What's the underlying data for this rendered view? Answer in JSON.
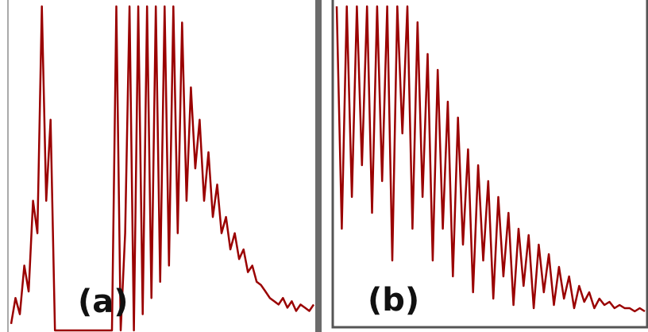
{
  "chart_data": [
    {
      "type": "line",
      "title": "(a)",
      "color": "#9a0000",
      "ylim": [
        0,
        100
      ],
      "values": [
        2,
        10,
        5,
        20,
        12,
        40,
        30,
        100,
        40,
        65,
        0,
        0,
        0,
        0,
        0,
        0,
        0,
        0,
        0,
        0,
        0,
        0,
        0,
        0,
        100,
        0,
        30,
        100,
        0,
        100,
        5,
        100,
        10,
        100,
        15,
        100,
        20,
        100,
        30,
        95,
        40,
        75,
        50,
        65,
        40,
        55,
        35,
        45,
        30,
        35,
        25,
        30,
        22,
        25,
        18,
        20,
        15,
        14,
        12,
        10,
        9,
        8,
        10,
        7,
        9,
        6,
        8,
        7,
        6,
        8
      ]
    },
    {
      "type": "line",
      "title": "(b)",
      "color": "#9a0000",
      "ylim": [
        0,
        100
      ],
      "values": [
        100,
        30,
        100,
        40,
        100,
        50,
        100,
        35,
        100,
        45,
        100,
        20,
        100,
        60,
        100,
        30,
        95,
        40,
        85,
        20,
        80,
        30,
        70,
        15,
        65,
        25,
        55,
        10,
        50,
        20,
        45,
        8,
        40,
        15,
        35,
        6,
        30,
        12,
        28,
        5,
        25,
        10,
        22,
        6,
        18,
        8,
        15,
        5,
        12,
        7,
        10,
        5,
        8,
        6,
        7,
        5,
        6,
        5,
        5,
        4,
        5,
        4
      ]
    }
  ]
}
